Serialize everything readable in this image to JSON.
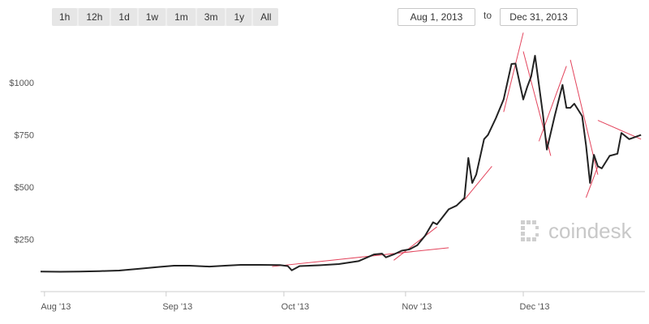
{
  "range_buttons": [
    "1h",
    "12h",
    "1d",
    "1w",
    "1m",
    "3m",
    "1y",
    "All"
  ],
  "date_from": "Aug 1, 2013",
  "date_to_label": "to",
  "date_to": "Dec 31, 2013",
  "watermark": "coindesk",
  "colors": {
    "line": "#222222",
    "trendlines": "#e0304a",
    "axis": "#cccccc",
    "watermark": "#c8c8c8"
  },
  "chart_data": {
    "type": "line",
    "title": "",
    "xlabel": "",
    "ylabel": "",
    "x_ticks": [
      {
        "date": "2013-08-01",
        "label": "Aug '13"
      },
      {
        "date": "2013-09-01",
        "label": "Sep '13"
      },
      {
        "date": "2013-10-01",
        "label": "Oct '13"
      },
      {
        "date": "2013-11-01",
        "label": "Nov '13"
      },
      {
        "date": "2013-12-01",
        "label": "Dec '13"
      }
    ],
    "y_ticks": [
      {
        "value": 250,
        "label": "$250"
      },
      {
        "value": 500,
        "label": "$500"
      },
      {
        "value": 750,
        "label": "$750"
      },
      {
        "value": 1000,
        "label": "$1000"
      }
    ],
    "xlim": [
      "2013-07-31",
      "2014-01-01"
    ],
    "ylim": [
      0,
      1280
    ],
    "grid": false,
    "series": [
      {
        "points": [
          [
            "2013-07-31",
            96
          ],
          [
            "2013-08-05",
            95
          ],
          [
            "2013-08-10",
            96
          ],
          [
            "2013-08-15",
            98
          ],
          [
            "2013-08-20",
            101
          ],
          [
            "2013-08-25",
            109
          ],
          [
            "2013-08-30",
            118
          ],
          [
            "2013-09-03",
            124
          ],
          [
            "2013-09-07",
            124
          ],
          [
            "2013-09-12",
            120
          ],
          [
            "2013-09-16",
            124
          ],
          [
            "2013-09-20",
            128
          ],
          [
            "2013-09-25",
            128
          ],
          [
            "2013-09-30",
            127
          ],
          [
            "2013-10-02",
            122
          ],
          [
            "2013-10-03",
            102
          ],
          [
            "2013-10-05",
            122
          ],
          [
            "2013-10-10",
            126
          ],
          [
            "2013-10-15",
            132
          ],
          [
            "2013-10-20",
            146
          ],
          [
            "2013-10-24",
            178
          ],
          [
            "2013-10-26",
            182
          ],
          [
            "2013-10-27",
            164
          ],
          [
            "2013-10-29",
            178
          ],
          [
            "2013-10-31",
            196
          ],
          [
            "2013-11-02",
            202
          ],
          [
            "2013-11-04",
            222
          ],
          [
            "2013-11-06",
            268
          ],
          [
            "2013-11-08",
            332
          ],
          [
            "2013-11-09",
            322
          ],
          [
            "2013-11-12",
            394
          ],
          [
            "2013-11-14",
            412
          ],
          [
            "2013-11-16",
            448
          ],
          [
            "2013-11-17",
            640
          ],
          [
            "2013-11-18",
            520
          ],
          [
            "2013-11-19",
            560
          ],
          [
            "2013-11-21",
            730
          ],
          [
            "2013-11-22",
            750
          ],
          [
            "2013-11-24",
            830
          ],
          [
            "2013-11-26",
            920
          ],
          [
            "2013-11-28",
            1090
          ],
          [
            "2013-11-29",
            1092
          ],
          [
            "2013-12-01",
            920
          ],
          [
            "2013-12-02",
            980
          ],
          [
            "2013-12-03",
            1030
          ],
          [
            "2013-12-04",
            1130
          ],
          [
            "2013-12-06",
            850
          ],
          [
            "2013-12-07",
            680
          ],
          [
            "2013-12-09",
            840
          ],
          [
            "2013-12-11",
            990
          ],
          [
            "2013-12-12",
            880
          ],
          [
            "2013-12-13",
            880
          ],
          [
            "2013-12-14",
            900
          ],
          [
            "2013-12-16",
            840
          ],
          [
            "2013-12-17",
            700
          ],
          [
            "2013-12-18",
            520
          ],
          [
            "2013-12-19",
            655
          ],
          [
            "2013-12-20",
            600
          ],
          [
            "2013-12-21",
            590
          ],
          [
            "2013-12-23",
            650
          ],
          [
            "2013-12-25",
            660
          ],
          [
            "2013-12-26",
            760
          ],
          [
            "2013-12-28",
            730
          ],
          [
            "2013-12-31",
            750
          ]
        ]
      }
    ],
    "trendlines": [
      {
        "from": [
          "2013-09-28",
          120
        ],
        "to": [
          "2013-11-12",
          210
        ]
      },
      {
        "from": [
          "2013-10-29",
          150
        ],
        "to": [
          "2013-11-09",
          310
        ]
      },
      {
        "from": [
          "2013-11-16",
          440
        ],
        "to": [
          "2013-11-23",
          600
        ]
      },
      {
        "from": [
          "2013-11-26",
          860
        ],
        "to": [
          "2013-12-01",
          1240
        ]
      },
      {
        "from": [
          "2013-12-01",
          1150
        ],
        "to": [
          "2013-12-08",
          650
        ]
      },
      {
        "from": [
          "2013-12-05",
          720
        ],
        "to": [
          "2013-12-12",
          1080
        ]
      },
      {
        "from": [
          "2013-12-13",
          1110
        ],
        "to": [
          "2013-12-20",
          560
        ]
      },
      {
        "from": [
          "2013-12-17",
          450
        ],
        "to": [
          "2013-12-20",
          600
        ]
      },
      {
        "from": [
          "2013-12-20",
          820
        ],
        "to": [
          "2013-12-31",
          730
        ]
      }
    ]
  }
}
